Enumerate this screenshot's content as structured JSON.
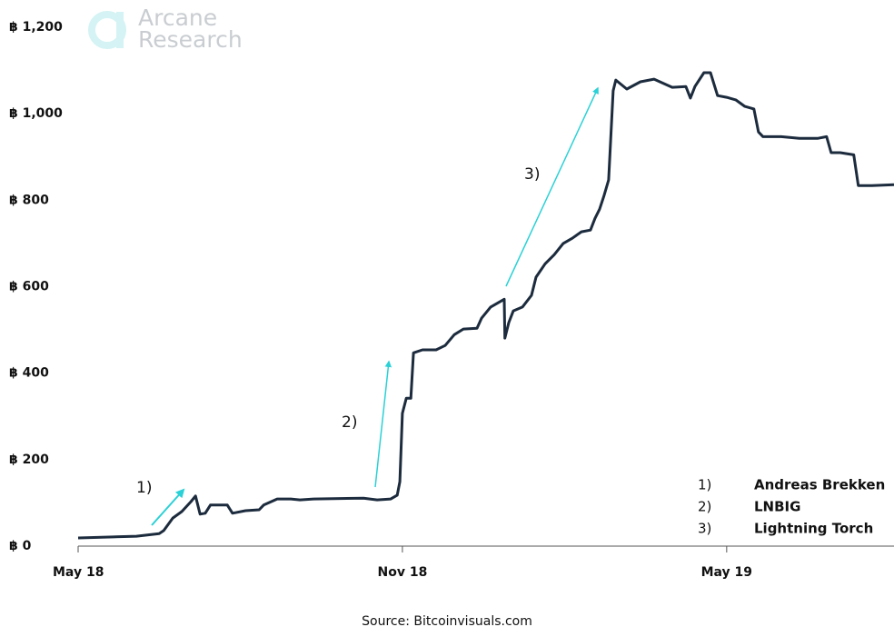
{
  "chart_data": {
    "type": "line",
    "logo": [
      "Arcane",
      "Research"
    ],
    "source": "Source: Bitcoinvisuals.com",
    "annotations": [
      "1)",
      "2)",
      "3)"
    ],
    "notes": [
      {
        "number": "1)",
        "name": "Andreas Brekken"
      },
      {
        "number": "2)",
        "name": "LNBIG"
      },
      {
        "number": "3)",
        "name": "Lightning Torch"
      }
    ],
    "color": "#1c2b3d",
    "grid": false,
    "xlim": [
      2018.333,
      2019.591
    ],
    "xticks": [
      {
        "value": 2018.333,
        "label": "May 18"
      },
      {
        "value": 2018.833,
        "label": "Nov 18"
      },
      {
        "value": 2019.333,
        "label": "May 19"
      }
    ],
    "ylim": [
      0,
      1200
    ],
    "yticks": [
      {
        "value": 0,
        "label": "฿ 0"
      },
      {
        "value": 200,
        "label": "฿ 200"
      },
      {
        "value": 400,
        "label": "฿ 400"
      },
      {
        "value": 600,
        "label": "฿ 600"
      },
      {
        "value": 800,
        "label": "฿ 800"
      },
      {
        "value": 1000,
        "label": "฿ 1,000"
      },
      {
        "value": 1200,
        "label": "฿ 1,200"
      }
    ],
    "x": [
      2018.333,
      2018.381,
      2018.423,
      2018.458,
      2018.465,
      2018.479,
      2018.493,
      2018.507,
      2018.514,
      2018.521,
      2018.529,
      2018.537,
      2018.563,
      2018.571,
      2018.591,
      2018.612,
      2018.619,
      2018.64,
      2018.661,
      2018.675,
      2018.696,
      2018.773,
      2018.794,
      2018.815,
      2018.825,
      2018.829,
      2018.833,
      2018.839,
      2018.846,
      2018.85,
      2018.864,
      2018.885,
      2018.899,
      2018.913,
      2018.927,
      2018.948,
      2018.955,
      2018.969,
      2018.99,
      2018.991,
      2018.997,
      2019.004,
      2019.018,
      2019.032,
      2019.039,
      2019.053,
      2019.067,
      2019.081,
      2019.095,
      2019.109,
      2019.123,
      2019.13,
      2019.137,
      2019.144,
      2019.151,
      2019.158,
      2019.162,
      2019.179,
      2019.2,
      2019.221,
      2019.249,
      2019.27,
      2019.277,
      2019.284,
      2019.298,
      2019.308,
      2019.319,
      2019.333,
      2019.347,
      2019.361,
      2019.375,
      2019.382,
      2019.389,
      2019.417,
      2019.445,
      2019.473,
      2019.487,
      2019.494,
      2019.508,
      2019.529,
      2019.536,
      2019.557,
      2019.591
    ],
    "values": [
      19,
      21,
      23,
      29,
      36,
      65,
      80,
      103,
      116,
      74,
      76,
      95,
      95,
      76,
      82,
      84,
      95,
      109,
      109,
      107,
      109,
      111,
      107,
      109,
      118,
      149,
      307,
      342,
      342,
      447,
      454,
      454,
      464,
      489,
      502,
      504,
      527,
      553,
      571,
      481,
      517,
      544,
      553,
      580,
      622,
      653,
      674,
      700,
      712,
      727,
      731,
      758,
      779,
      811,
      847,
      1053,
      1078,
      1057,
      1074,
      1080,
      1061,
      1063,
      1036,
      1063,
      1095,
      1095,
      1042,
      1038,
      1032,
      1017,
      1011,
      958,
      947,
      947,
      943,
      943,
      947,
      910,
      910,
      905,
      834,
      834,
      836
    ]
  }
}
